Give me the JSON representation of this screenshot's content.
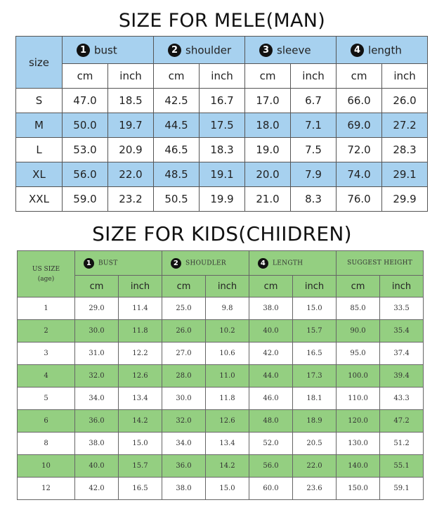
{
  "man": {
    "title": "SIZE FOR MELE(MAN)",
    "size_header": "size",
    "categories": [
      {
        "num": "1",
        "label": "bust"
      },
      {
        "num": "2",
        "label": "shoulder"
      },
      {
        "num": "3",
        "label": "sleeve"
      },
      {
        "num": "4",
        "label": "length"
      }
    ],
    "units": [
      "cm",
      "inch",
      "cm",
      "inch",
      "cm",
      "inch",
      "cm",
      "inch"
    ],
    "rows": [
      {
        "size": "S",
        "cells": [
          "47.0",
          "18.5",
          "42.5",
          "16.7",
          "17.0",
          "6.7",
          "66.0",
          "26.0"
        ]
      },
      {
        "size": "M",
        "cells": [
          "50.0",
          "19.7",
          "44.5",
          "17.5",
          "18.0",
          "7.1",
          "69.0",
          "27.2"
        ]
      },
      {
        "size": "L",
        "cells": [
          "53.0",
          "20.9",
          "46.5",
          "18.3",
          "19.0",
          "7.5",
          "72.0",
          "28.3"
        ]
      },
      {
        "size": "XL",
        "cells": [
          "56.0",
          "22.0",
          "48.5",
          "19.1",
          "20.0",
          "7.9",
          "74.0",
          "29.1"
        ]
      },
      {
        "size": "XXL",
        "cells": [
          "59.0",
          "23.2",
          "50.5",
          "19.9",
          "21.0",
          "8.3",
          "76.0",
          "29.9"
        ]
      }
    ]
  },
  "kids": {
    "title": "SIZE FOR KIDS(CHIIDREN)",
    "size_header_line1": "US SIZE",
    "size_header_line2": "(age)",
    "categories": [
      {
        "num": "1",
        "label": "BUST"
      },
      {
        "num": "2",
        "label": "SHOUDLER"
      },
      {
        "num": "4",
        "label": "LENGTH"
      },
      {
        "num": "",
        "label": "SUGGEST HEIGHT"
      }
    ],
    "units": [
      "cm",
      "inch",
      "cm",
      "inch",
      "cm",
      "inch",
      "cm",
      "inch"
    ],
    "rows": [
      {
        "age": "1",
        "cells": [
          "29.0",
          "11.4",
          "25.0",
          "9.8",
          "38.0",
          "15.0",
          "85.0",
          "33.5"
        ]
      },
      {
        "age": "2",
        "cells": [
          "30.0",
          "11.8",
          "26.0",
          "10.2",
          "40.0",
          "15.7",
          "90.0",
          "35.4"
        ]
      },
      {
        "age": "3",
        "cells": [
          "31.0",
          "12.2",
          "27.0",
          "10.6",
          "42.0",
          "16.5",
          "95.0",
          "37.4"
        ]
      },
      {
        "age": "4",
        "cells": [
          "32.0",
          "12.6",
          "28.0",
          "11.0",
          "44.0",
          "17.3",
          "100.0",
          "39.4"
        ]
      },
      {
        "age": "5",
        "cells": [
          "34.0",
          "13.4",
          "30.0",
          "11.8",
          "46.0",
          "18.1",
          "110.0",
          "43.3"
        ]
      },
      {
        "age": "6",
        "cells": [
          "36.0",
          "14.2",
          "32.0",
          "12.6",
          "48.0",
          "18.9",
          "120.0",
          "47.2"
        ]
      },
      {
        "age": "8",
        "cells": [
          "38.0",
          "15.0",
          "34.0",
          "13.4",
          "52.0",
          "20.5",
          "130.0",
          "51.2"
        ]
      },
      {
        "age": "10",
        "cells": [
          "40.0",
          "15.7",
          "36.0",
          "14.2",
          "56.0",
          "22.0",
          "140.0",
          "55.1"
        ]
      },
      {
        "age": "12",
        "cells": [
          "42.0",
          "16.5",
          "38.0",
          "15.0",
          "60.0",
          "23.6",
          "150.0",
          "59.1"
        ]
      }
    ]
  }
}
